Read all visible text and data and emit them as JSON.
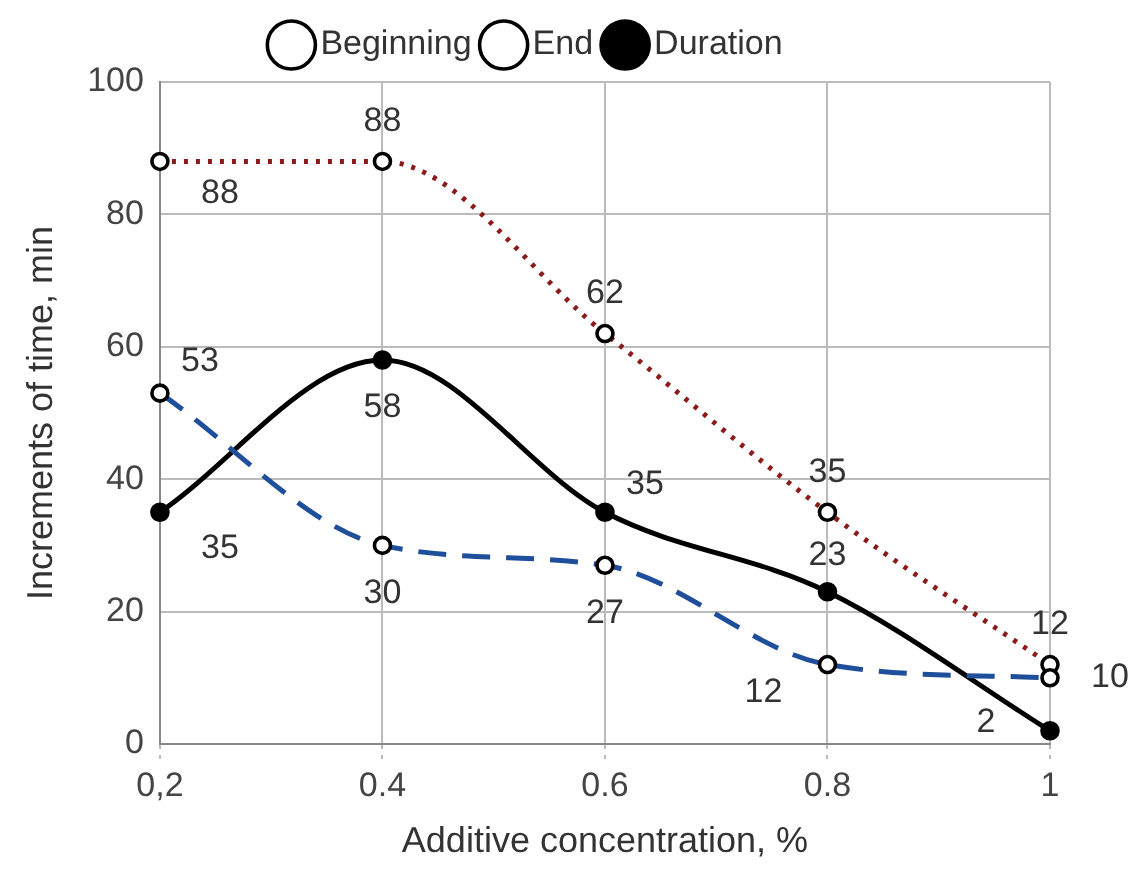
{
  "chart_data": {
    "type": "line",
    "xlabel": "Additive concentration, %",
    "ylabel": "Increments of time, min",
    "categories": [
      "0,2",
      "0.4",
      "0.6",
      "0.8",
      "1"
    ],
    "series": [
      {
        "name": "Beginning",
        "color": "#1f4e9a",
        "line_style": "dashed",
        "values": [
          53,
          30,
          27,
          12,
          10
        ]
      },
      {
        "name": "End",
        "color": "#8b1a1a",
        "line_style": "dotted",
        "values": [
          88,
          88,
          62,
          35,
          12
        ]
      },
      {
        "name": "Duration",
        "color": "#000000",
        "line_style": "solid",
        "values": [
          35,
          58,
          35,
          23,
          2
        ]
      }
    ],
    "ylim": [
      0,
      100
    ],
    "yticks": [
      0,
      20,
      40,
      60,
      80,
      100
    ],
    "grid": true,
    "legend": "top",
    "marker": "circle",
    "data_labels": true
  }
}
